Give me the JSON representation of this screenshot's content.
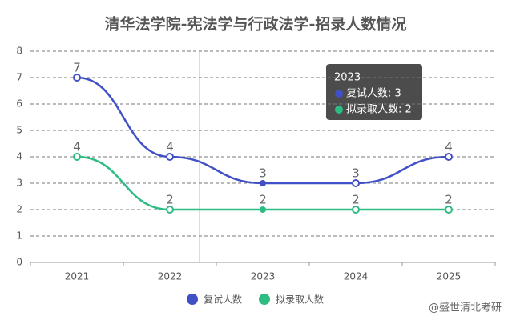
{
  "chart_data": {
    "type": "line",
    "title": "清华法学院-宪法学与行政法学-招录人数情况",
    "categories": [
      "2021",
      "2022",
      "2023",
      "2024",
      "2025"
    ],
    "series": [
      {
        "name": "复试人数",
        "color": "#4150c6",
        "values": [
          7,
          4,
          3,
          3,
          4
        ]
      },
      {
        "name": "拟录取人数",
        "color": "#2dbd82",
        "values": [
          4,
          2,
          2,
          2,
          2
        ]
      }
    ],
    "ylim": [
      0,
      8
    ],
    "yticks": [
      0,
      1,
      2,
      3,
      4,
      5,
      6,
      7,
      8
    ],
    "grid": true,
    "smooth": true,
    "legend": "bottom",
    "tooltip": {
      "title": "2023",
      "lines": [
        "复试人数: 3",
        "拟录取人数: 2"
      ]
    },
    "watermark": "@盛世清北考研"
  }
}
